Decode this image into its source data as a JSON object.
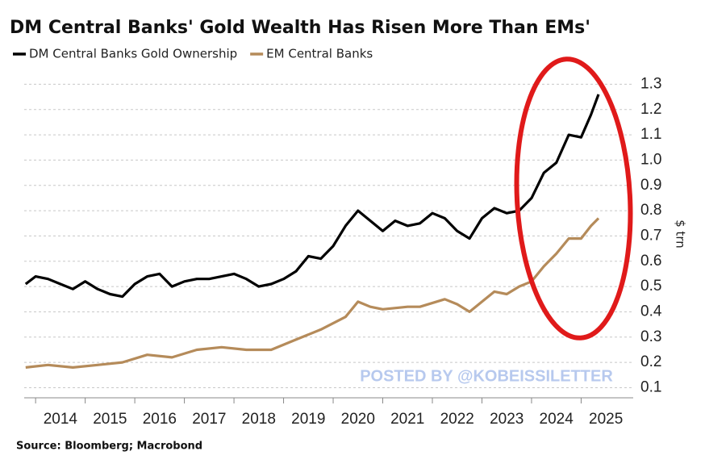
{
  "chart_data": {
    "type": "line",
    "title": "DM Central Banks' Gold Wealth Has Risen More Than EMs'",
    "y_axis_label": "$ trn",
    "source": "Source: Bloomberg; Macrobond",
    "watermark": "POSTED BY @KOBEISSILETTER",
    "series": [
      {
        "name": "DM Central Banks Gold Ownership",
        "color": "#000000",
        "x": [
          2013.8,
          2014.0,
          2014.25,
          2014.5,
          2014.75,
          2015.0,
          2015.25,
          2015.5,
          2015.75,
          2016.0,
          2016.25,
          2016.5,
          2016.75,
          2017.0,
          2017.25,
          2017.5,
          2017.75,
          2018.0,
          2018.25,
          2018.5,
          2018.75,
          2019.0,
          2019.25,
          2019.5,
          2019.75,
          2020.0,
          2020.25,
          2020.5,
          2020.75,
          2021.0,
          2021.25,
          2021.5,
          2021.75,
          2022.0,
          2022.25,
          2022.5,
          2022.75,
          2023.0,
          2023.25,
          2023.5,
          2023.75,
          2024.0,
          2024.25,
          2024.5,
          2024.75,
          2025.0,
          2025.2,
          2025.35
        ],
        "values": [
          0.51,
          0.54,
          0.53,
          0.51,
          0.49,
          0.52,
          0.49,
          0.47,
          0.46,
          0.51,
          0.54,
          0.55,
          0.5,
          0.52,
          0.53,
          0.53,
          0.54,
          0.55,
          0.53,
          0.5,
          0.51,
          0.53,
          0.56,
          0.62,
          0.61,
          0.66,
          0.74,
          0.8,
          0.76,
          0.72,
          0.76,
          0.74,
          0.75,
          0.79,
          0.77,
          0.72,
          0.69,
          0.77,
          0.81,
          0.79,
          0.8,
          0.85,
          0.95,
          0.99,
          1.1,
          1.09,
          1.18,
          1.26
        ]
      },
      {
        "name": "EM Central Banks",
        "color": "#b58b5a",
        "x": [
          2013.8,
          2014.25,
          2014.75,
          2015.25,
          2015.75,
          2016.25,
          2016.75,
          2017.25,
          2017.75,
          2018.25,
          2018.75,
          2019.25,
          2019.75,
          2020.25,
          2020.5,
          2020.75,
          2021.0,
          2021.5,
          2021.75,
          2022.25,
          2022.5,
          2022.75,
          2023.0,
          2023.25,
          2023.5,
          2023.75,
          2024.0,
          2024.25,
          2024.5,
          2024.75,
          2025.0,
          2025.2,
          2025.35
        ],
        "values": [
          0.18,
          0.19,
          0.18,
          0.19,
          0.2,
          0.23,
          0.22,
          0.25,
          0.26,
          0.25,
          0.25,
          0.29,
          0.33,
          0.38,
          0.44,
          0.42,
          0.41,
          0.42,
          0.42,
          0.45,
          0.43,
          0.4,
          0.44,
          0.48,
          0.47,
          0.5,
          0.52,
          0.58,
          0.63,
          0.69,
          0.69,
          0.74,
          0.77
        ]
      }
    ],
    "xlim": [
      2013.77,
      2026.05
    ],
    "xticks": [
      2014,
      2015,
      2016,
      2017,
      2018,
      2019,
      2020,
      2021,
      2022,
      2023,
      2024,
      2025
    ],
    "ylim": [
      0.06,
      1.33
    ],
    "yticks": [
      0.1,
      0.2,
      0.3,
      0.4,
      0.5,
      0.6,
      0.7,
      0.8,
      0.9,
      {
        "value": 1.0,
        "label": "1.0"
      },
      1.1,
      1.2,
      1.3
    ],
    "grid": true
  }
}
